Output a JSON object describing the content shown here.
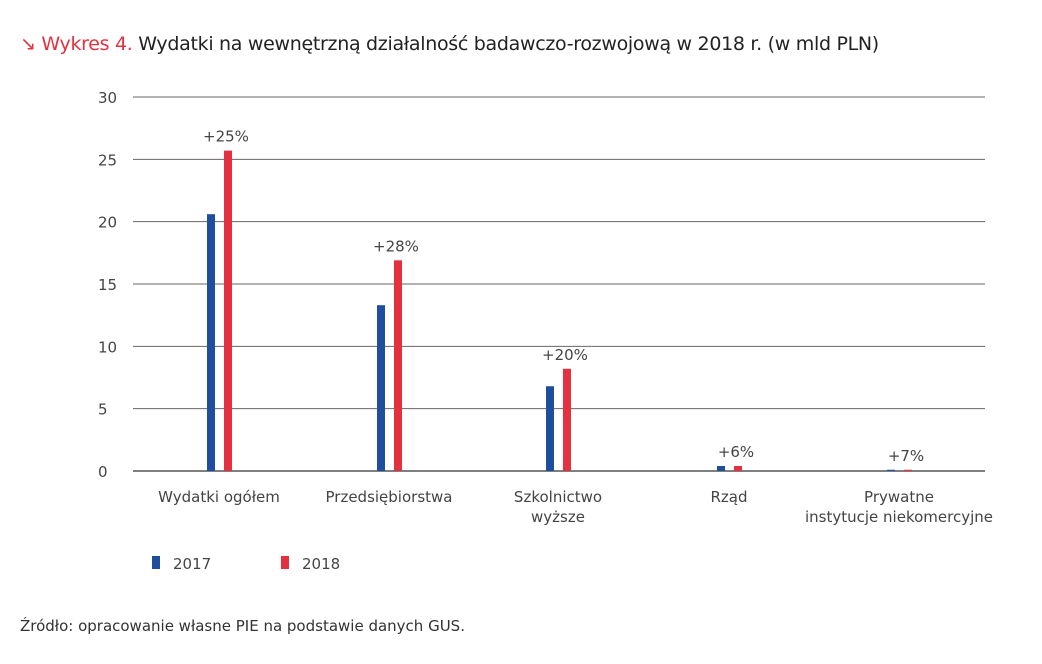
{
  "title": {
    "arrow": "↘",
    "label": "Wykres 4.",
    "text": "Wydatki na wewnętrzną działalność badawczo-rozwojową w 2018 r. (w mld PLN)"
  },
  "source": "Źródło: opracowanie własne PIE na podstawie danych GUS.",
  "chart_data": {
    "type": "bar",
    "title": "Wydatki na wewnętrzną działalność badawczo-rozwojową w 2018 r. (w mld PLN)",
    "categories": [
      [
        "Wydatki ogółem"
      ],
      [
        "Przedsiębiorstwa"
      ],
      [
        "Szkolnictwo",
        "wyższe"
      ],
      [
        "Rząd"
      ],
      [
        "Prywatne",
        "instytucje niekomercyjne"
      ]
    ],
    "series": [
      {
        "name": "2017",
        "color": "#1f4e9c",
        "values": [
          20.6,
          13.3,
          6.8,
          0.4,
          0.1
        ]
      },
      {
        "name": "2018",
        "color": "#e3313f",
        "values": [
          25.7,
          16.9,
          8.2,
          0.4,
          0.1
        ]
      }
    ],
    "annotations": [
      "+25%",
      "+28%",
      "+20%",
      "+6%",
      "+7%"
    ],
    "yticks": [
      0,
      5,
      10,
      15,
      20,
      25,
      30
    ],
    "ylim": [
      0,
      30
    ],
    "grid": true,
    "legend": "bottom-left"
  }
}
